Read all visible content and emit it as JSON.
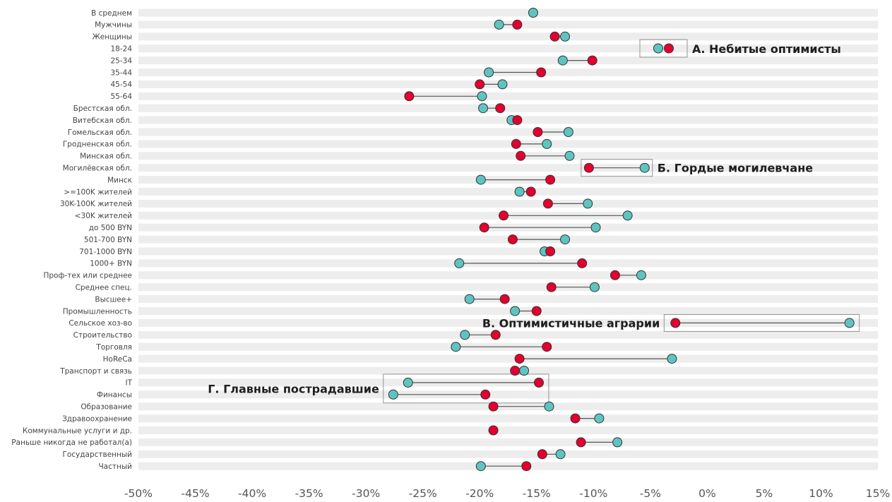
{
  "chart_data": {
    "type": "dumbbell",
    "title": "",
    "xlabel": "",
    "ylabel": "",
    "xlim": [
      -50,
      15
    ],
    "x_ticks": [
      -50,
      -45,
      -40,
      -35,
      -30,
      -25,
      -20,
      -15,
      -10,
      -5,
      0,
      5,
      10,
      15
    ],
    "x_tick_labels": [
      "-50%",
      "-45%",
      "-40%",
      "-35%",
      "-30%",
      "-25%",
      "-20%",
      "-15%",
      "-10%",
      "-5%",
      "0%",
      "5%",
      "10%",
      "15%"
    ],
    "grid": true,
    "colors": {
      "teal": "#5ec4c1",
      "red": "#e3002f",
      "band": "#ededed",
      "line": "#555555",
      "box": "#888888"
    },
    "categories": [
      "В среднем",
      "Мужчины",
      "Женщины",
      "18-24",
      "25-34",
      "35-44",
      "45-54",
      "55-64",
      "Брестская обл.",
      "Витебская обл.",
      "Гомельская обл.",
      "Гродненская обл.",
      "Минская обл.",
      "Могилёвская обл.",
      "Минск",
      ">=100K жителей",
      "30K-100K жителей",
      "<30K жителей",
      "до 500 BYN",
      "501-700 BYN",
      "701-1000 BYN",
      "1000+ BYN",
      "Проф-тех или среднее",
      "Среднее спец.",
      "Высшее+",
      "Промышленность",
      "Сельское хоз-во",
      "Строительство",
      "Торговля",
      "HoReCa",
      "Транспорт и связь",
      "IT",
      "Финансы",
      "Образование",
      "Здравоохранение",
      "Коммунальные услуги и др.",
      "Раньше никогда не работал(а)",
      "Государственный",
      "Частный"
    ],
    "teal_values": [
      -15.3,
      -18.3,
      -12.5,
      null,
      -12.7,
      -19.2,
      -18.0,
      -19.8,
      -19.7,
      -17.2,
      -12.2,
      -14.1,
      -12.1,
      -5.5,
      -19.9,
      -16.5,
      -10.5,
      -7.0,
      -9.8,
      -12.5,
      -14.3,
      -21.8,
      -5.8,
      -9.9,
      -20.9,
      -16.9,
      12.5,
      -21.3,
      -22.1,
      -3.1,
      -16.1,
      -26.3,
      -27.6,
      -13.9,
      -9.5,
      null,
      -7.9,
      -12.9,
      -19.9
    ],
    "red_values": [
      null,
      -16.7,
      -13.4,
      null,
      -10.1,
      -14.6,
      -20.0,
      -26.2,
      -18.2,
      -16.7,
      -14.9,
      -16.8,
      -16.4,
      -10.4,
      -13.8,
      -15.5,
      -14.0,
      -17.9,
      -19.6,
      -17.1,
      -13.8,
      -11.0,
      -8.1,
      -13.7,
      -17.8,
      -15.0,
      -2.8,
      -18.6,
      -14.1,
      -16.5,
      -16.9,
      -14.8,
      -19.5,
      -18.8,
      -11.6,
      -18.8,
      -11.1,
      -14.5,
      -15.9
    ],
    "legend": {
      "label": "А. Небитые оптимисты",
      "placement": "top-right"
    },
    "annotations": [
      {
        "label": "Б. Гордые могилевчане",
        "rows": [
          13
        ]
      },
      {
        "label": "В. Оптимистичные аграрии",
        "rows": [
          26
        ]
      },
      {
        "label": "Г. Главные пострадавшие",
        "rows": [
          31,
          32
        ]
      }
    ]
  }
}
